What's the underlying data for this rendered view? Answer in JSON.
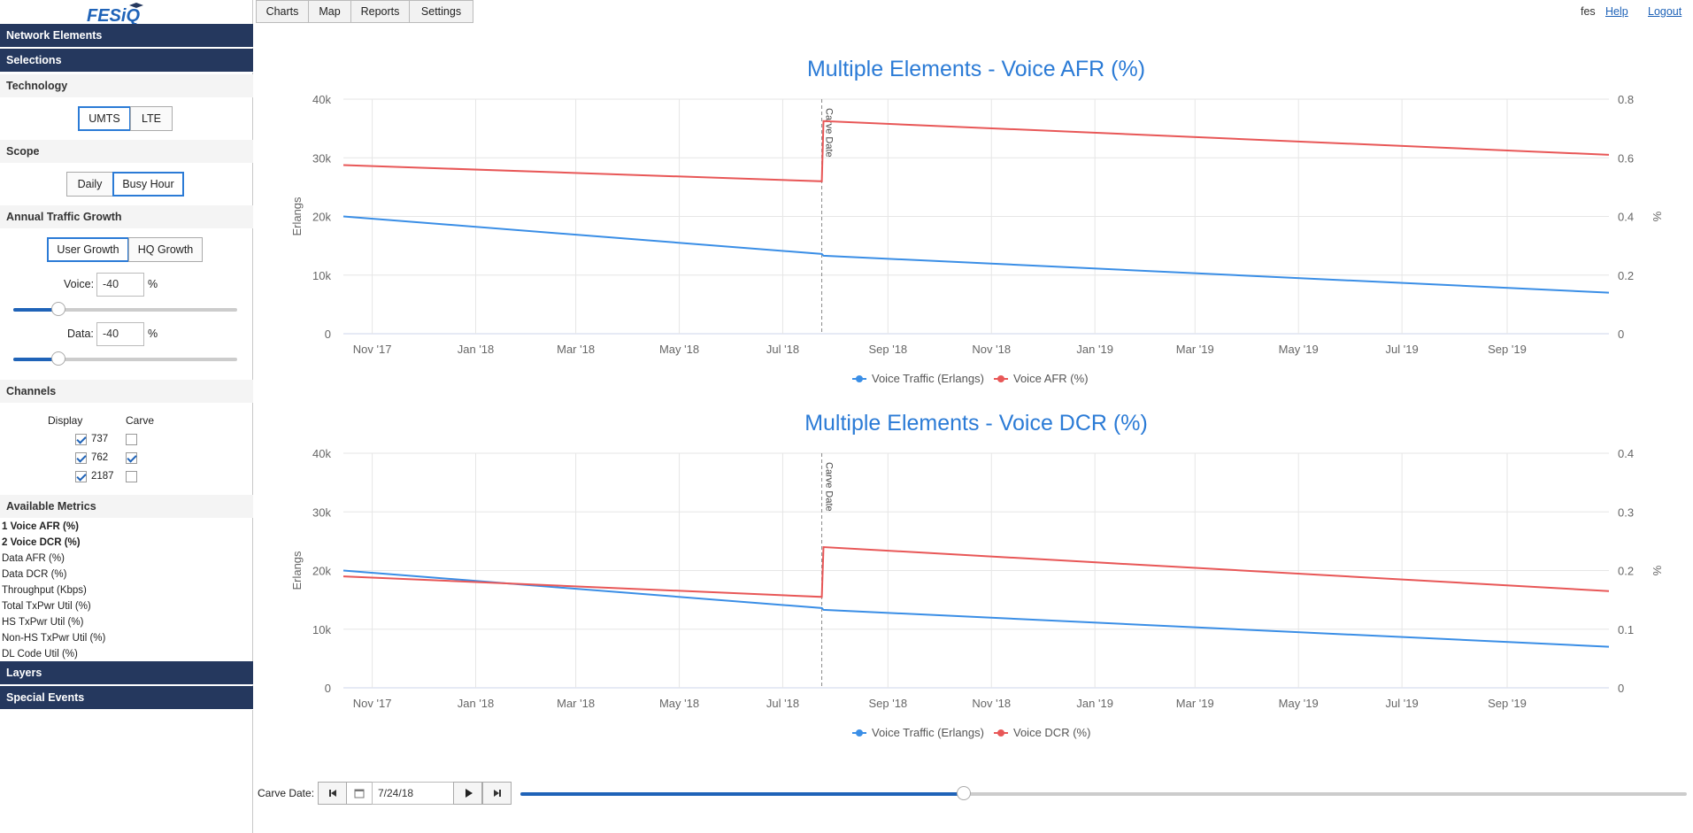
{
  "app": {
    "logo_text": "FESiQ"
  },
  "sidebar": {
    "network_elements": "Network Elements",
    "selections": "Selections",
    "technology": {
      "title": "Technology",
      "options": [
        "UMTS",
        "LTE"
      ],
      "selected": "UMTS"
    },
    "scope": {
      "title": "Scope",
      "options": [
        "Daily",
        "Busy Hour"
      ],
      "selected": "Busy Hour"
    },
    "growth": {
      "title": "Annual Traffic Growth",
      "options": [
        "User Growth",
        "HQ Growth"
      ],
      "selected": "User Growth",
      "voice_label": "Voice:",
      "voice_value": "-40",
      "voice_unit": "%",
      "voice_level": 0.2,
      "data_label": "Data:",
      "data_value": "-40",
      "data_unit": "%",
      "data_level": 0.2
    },
    "channels": {
      "title": "Channels",
      "display_header": "Display",
      "carve_header": "Carve",
      "rows": [
        {
          "name": "737",
          "display": true,
          "carve": false
        },
        {
          "name": "762",
          "display": true,
          "carve": true
        },
        {
          "name": "2187",
          "display": true,
          "carve": false
        }
      ]
    },
    "metrics": {
      "title": "Available Metrics",
      "items": [
        {
          "label": "1 Voice AFR (%)",
          "selected": true
        },
        {
          "label": "2 Voice DCR (%)",
          "selected": true
        },
        {
          "label": "Data AFR (%)",
          "selected": false
        },
        {
          "label": "Data DCR (%)",
          "selected": false
        },
        {
          "label": "Throughput (Kbps)",
          "selected": false
        },
        {
          "label": "Total TxPwr Util (%)",
          "selected": false
        },
        {
          "label": "HS TxPwr Util (%)",
          "selected": false
        },
        {
          "label": "Non-HS TxPwr Util (%)",
          "selected": false
        },
        {
          "label": "DL Code Util (%)",
          "selected": false
        }
      ]
    },
    "layers": "Layers",
    "special_events": "Special Events"
  },
  "topbar": {
    "tabs": [
      "Charts",
      "Map",
      "Reports",
      "Settings"
    ],
    "user": "fes",
    "help": "Help",
    "logout": "Logout"
  },
  "bottom": {
    "carve_label": "Carve Date:",
    "date_value": "7/24/18",
    "slider_level": 0.38
  },
  "colors": {
    "traffic": "#3a8ee6",
    "metric": "#e85757",
    "title": "#2b7bd6",
    "nav": "#25385e"
  },
  "chart_data": [
    {
      "type": "line",
      "title": "Multiple Elements - Voice AFR (%)",
      "ylabel": "Erlangs",
      "ylabel_right": "%",
      "x_ticks": [
        "Nov '17",
        "Jan '18",
        "Mar '18",
        "May '18",
        "Jul '18",
        "Sep '18",
        "Nov '18",
        "Jan '19",
        "Mar '19",
        "May '19",
        "Jul '19",
        "Sep '19"
      ],
      "x_range": [
        "2017-10-15",
        "2019-10-31"
      ],
      "y_left_ticks": [
        "0",
        "10k",
        "20k",
        "30k",
        "40k"
      ],
      "y_left_range": [
        0,
        40000
      ],
      "y_right_ticks": [
        "0",
        "0.2",
        "0.4",
        "0.6",
        "0.8"
      ],
      "y_right_range": [
        0,
        0.8
      ],
      "annotation": {
        "label": "Carve Date",
        "x": "2018-07-24"
      },
      "grid": true,
      "legend": "bottom",
      "series": [
        {
          "name": "Voice Traffic (Erlangs)",
          "axis": "left",
          "points": [
            [
              "2017-10-15",
              20000
            ],
            [
              "2018-07-24",
              13600
            ],
            [
              "2018-07-25",
              13300
            ],
            [
              "2019-10-31",
              7000
            ]
          ]
        },
        {
          "name": "Voice AFR (%)",
          "axis": "right",
          "points": [
            [
              "2017-10-15",
              0.575
            ],
            [
              "2018-07-24",
              0.52
            ],
            [
              "2018-07-25",
              0.725
            ],
            [
              "2019-10-31",
              0.61
            ]
          ]
        }
      ]
    },
    {
      "type": "line",
      "title": "Multiple Elements - Voice DCR (%)",
      "ylabel": "Erlangs",
      "ylabel_right": "%",
      "x_ticks": [
        "Nov '17",
        "Jan '18",
        "Mar '18",
        "May '18",
        "Jul '18",
        "Sep '18",
        "Nov '18",
        "Jan '19",
        "Mar '19",
        "May '19",
        "Jul '19",
        "Sep '19"
      ],
      "x_range": [
        "2017-10-15",
        "2019-10-31"
      ],
      "y_left_ticks": [
        "0",
        "10k",
        "20k",
        "30k",
        "40k"
      ],
      "y_left_range": [
        0,
        40000
      ],
      "y_right_ticks": [
        "0",
        "0.1",
        "0.2",
        "0.3",
        "0.4"
      ],
      "y_right_range": [
        0,
        0.4
      ],
      "annotation": {
        "label": "Carve Date",
        "x": "2018-07-24"
      },
      "grid": true,
      "legend": "bottom",
      "series": [
        {
          "name": "Voice Traffic (Erlangs)",
          "axis": "left",
          "points": [
            [
              "2017-10-15",
              20000
            ],
            [
              "2018-07-24",
              13600
            ],
            [
              "2018-07-25",
              13300
            ],
            [
              "2019-10-31",
              7000
            ]
          ]
        },
        {
          "name": "Voice DCR (%)",
          "axis": "right",
          "points": [
            [
              "2017-10-15",
              0.19
            ],
            [
              "2018-07-24",
              0.155
            ],
            [
              "2018-07-25",
              0.24
            ],
            [
              "2019-10-31",
              0.165
            ]
          ]
        }
      ]
    }
  ]
}
